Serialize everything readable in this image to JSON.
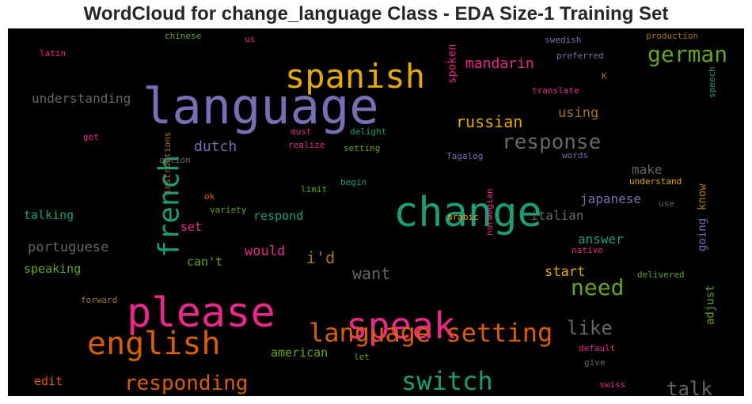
{
  "chart_data": {
    "type": "wordcloud",
    "title": "WordCloud for change_language Class - EDA Size-1 Training Set",
    "background": "#000000",
    "palette": {
      "purple": "#7570b3",
      "teal": "#1b9e77",
      "orange": "#d95f02",
      "pink": "#e7298a",
      "green": "#66a61e",
      "gold": "#e6ab02",
      "brown": "#a6761d",
      "gray": "#666666"
    },
    "words": [
      {
        "text": "language",
        "weight": 100,
        "color": "purple"
      },
      {
        "text": "change",
        "weight": 88,
        "color": "teal"
      },
      {
        "text": "please",
        "weight": 84,
        "color": "pink"
      },
      {
        "text": "speak",
        "weight": 74,
        "color": "pink"
      },
      {
        "text": "spanish",
        "weight": 62,
        "color": "gold"
      },
      {
        "text": "english",
        "weight": 58,
        "color": "orange"
      },
      {
        "text": "french",
        "weight": 56,
        "color": "teal"
      },
      {
        "text": "language setting",
        "weight": 48,
        "color": "orange"
      },
      {
        "text": "switch",
        "weight": 46,
        "color": "teal"
      },
      {
        "text": "need",
        "weight": 40,
        "color": "green"
      },
      {
        "text": "german",
        "weight": 38,
        "color": "green"
      },
      {
        "text": "response",
        "weight": 36,
        "color": "gray"
      },
      {
        "text": "responding",
        "weight": 34,
        "color": "orange"
      },
      {
        "text": "like",
        "weight": 32,
        "color": "gray"
      },
      {
        "text": "talk",
        "weight": 32,
        "color": "gray"
      },
      {
        "text": "russian",
        "weight": 26,
        "color": "gold"
      },
      {
        "text": "want",
        "weight": 26,
        "color": "gray"
      },
      {
        "text": "mandarin",
        "weight": 24,
        "color": "pink"
      },
      {
        "text": "i'd",
        "weight": 24,
        "color": "brown"
      },
      {
        "text": "dutch",
        "weight": 22,
        "color": "purple"
      },
      {
        "text": "using",
        "weight": 22,
        "color": "brown"
      },
      {
        "text": "portuguese",
        "weight": 22,
        "color": "gray"
      },
      {
        "text": "would",
        "weight": 22,
        "color": "pink"
      },
      {
        "text": "start",
        "weight": 22,
        "color": "gold"
      },
      {
        "text": "understanding",
        "weight": 20,
        "color": "gray"
      },
      {
        "text": "spoken",
        "weight": 18,
        "color": "pink"
      },
      {
        "text": "make",
        "weight": 20,
        "color": "gray"
      },
      {
        "text": "japanese",
        "weight": 20,
        "color": "purple"
      },
      {
        "text": "italian",
        "weight": 20,
        "color": "gray"
      },
      {
        "text": "answer",
        "weight": 20,
        "color": "teal"
      },
      {
        "text": "know",
        "weight": 18,
        "color": "brown"
      },
      {
        "text": "going",
        "weight": 18,
        "color": "purple"
      },
      {
        "text": "adjust",
        "weight": 18,
        "color": "green"
      },
      {
        "text": "talking",
        "weight": 18,
        "color": "teal"
      },
      {
        "text": "speaking",
        "weight": 18,
        "color": "green"
      },
      {
        "text": "respond",
        "weight": 18,
        "color": "teal"
      },
      {
        "text": "set",
        "weight": 18,
        "color": "pink"
      },
      {
        "text": "can't",
        "weight": 18,
        "color": "green"
      },
      {
        "text": "american",
        "weight": 18,
        "color": "green"
      },
      {
        "text": "edit",
        "weight": 16,
        "color": "orange"
      },
      {
        "text": "chinese",
        "weight": 11,
        "color": "green"
      },
      {
        "text": "us",
        "weight": 11,
        "color": "pink"
      },
      {
        "text": "latin",
        "weight": 11,
        "color": "pink"
      },
      {
        "text": "swedish",
        "weight": 11,
        "color": "purple"
      },
      {
        "text": "production",
        "weight": 11,
        "color": "brown"
      },
      {
        "text": "preferred",
        "weight": 11,
        "color": "purple"
      },
      {
        "text": "K",
        "weight": 11,
        "color": "brown"
      },
      {
        "text": "translate",
        "weight": 11,
        "color": "pink"
      },
      {
        "text": "speech",
        "weight": 11,
        "color": "teal"
      },
      {
        "text": "get",
        "weight": 11,
        "color": "pink"
      },
      {
        "text": "must",
        "weight": 11,
        "color": "pink"
      },
      {
        "text": "delight",
        "weight": 11,
        "color": "teal"
      },
      {
        "text": "realize",
        "weight": 11,
        "color": "pink"
      },
      {
        "text": "setting",
        "weight": 11,
        "color": "green"
      },
      {
        "text": "option",
        "weight": 11,
        "color": "gray"
      },
      {
        "text": "Tagalog",
        "weight": 11,
        "color": "purple"
      },
      {
        "text": "words",
        "weight": 11,
        "color": "purple"
      },
      {
        "text": "begin",
        "weight": 11,
        "color": "teal"
      },
      {
        "text": "understand",
        "weight": 11,
        "color": "gold"
      },
      {
        "text": "limit",
        "weight": 11,
        "color": "green"
      },
      {
        "text": "ok",
        "weight": 11,
        "color": "orange"
      },
      {
        "text": "variety",
        "weight": 11,
        "color": "green"
      },
      {
        "text": "instructions",
        "weight": 11,
        "color": "brown"
      },
      {
        "text": "use",
        "weight": 11,
        "color": "gray"
      },
      {
        "text": "arabic",
        "weight": 11,
        "color": "gold"
      },
      {
        "text": "norwegian",
        "weight": 11,
        "color": "pink"
      },
      {
        "text": "native",
        "weight": 11,
        "color": "pink"
      },
      {
        "text": "delivered",
        "weight": 11,
        "color": "green"
      },
      {
        "text": "forward",
        "weight": 11,
        "color": "brown"
      },
      {
        "text": "default",
        "weight": 11,
        "color": "pink"
      },
      {
        "text": "let",
        "weight": 11,
        "color": "green"
      },
      {
        "text": "give",
        "weight": 11,
        "color": "gray"
      },
      {
        "text": "swiss",
        "weight": 11,
        "color": "pink"
      }
    ]
  }
}
